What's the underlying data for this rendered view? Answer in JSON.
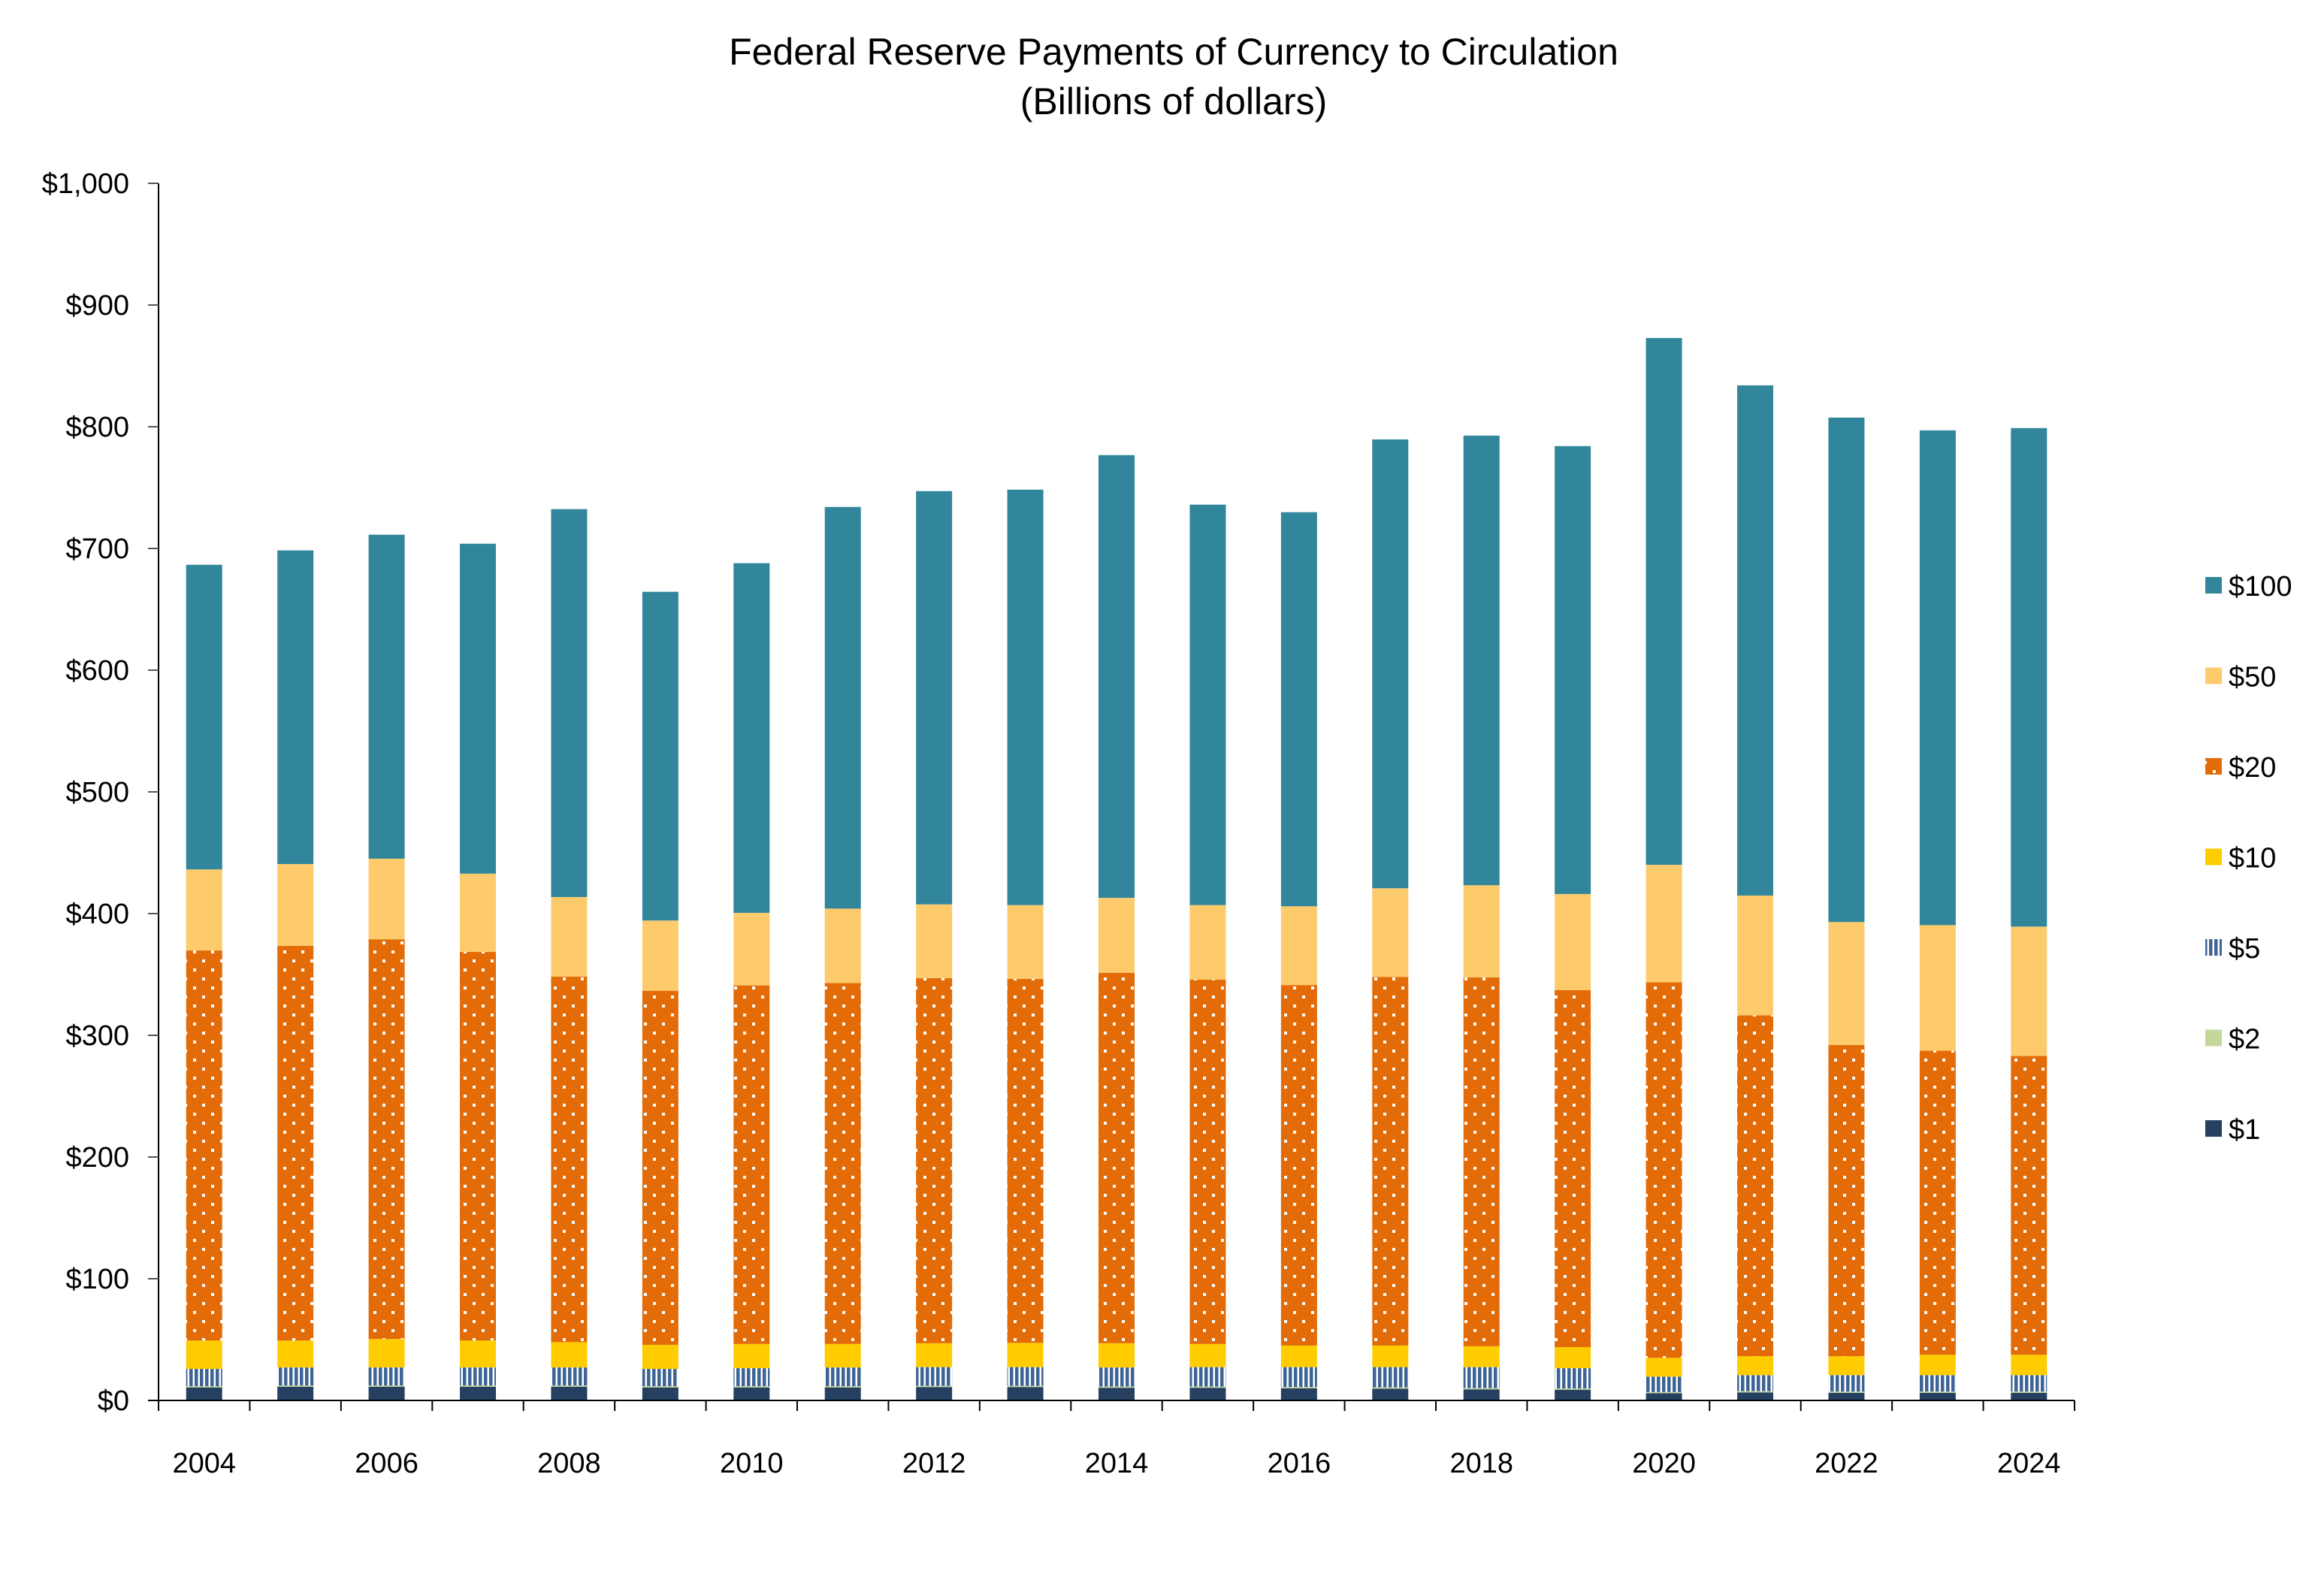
{
  "chart_data": {
    "type": "bar",
    "stacked": true,
    "title": "Federal Reserve Payments of Currency to Circulation",
    "subtitle": "(Billions of dollars)",
    "xlabel": "",
    "ylabel": "",
    "ylim": [
      0,
      1000
    ],
    "ytick_step": 100,
    "ytick_labels": [
      "$0",
      "$100",
      "$200",
      "$300",
      "$400",
      "$500",
      "$600",
      "$700",
      "$800",
      "$900",
      "$1,000"
    ],
    "grid": false,
    "legend_position": "right",
    "categories": [
      "2004",
      "2005",
      "2006",
      "2007",
      "2008",
      "2009",
      "2010",
      "2011",
      "2012",
      "2013",
      "2014",
      "2015",
      "2016",
      "2017",
      "2018",
      "2019",
      "2020",
      "2021",
      "2022",
      "2023",
      "2024"
    ],
    "xtick_labels": [
      "2004",
      "",
      "2006",
      "",
      "2008",
      "",
      "2010",
      "",
      "2012",
      "",
      "2014",
      "",
      "2016",
      "",
      "2018",
      "",
      "2020",
      "",
      "2022",
      "",
      "2024"
    ],
    "series": [
      {
        "name": "$1",
        "color": "#254061",
        "pattern": "solid",
        "values": [
          10.7,
          11.3,
          11.3,
          11.3,
          11.3,
          10.7,
          10.7,
          10.7,
          11.0,
          11.0,
          10.4,
          10.4,
          10.0,
          9.7,
          9.1,
          8.8,
          5.9,
          6.6,
          6.3,
          6.3,
          6.3
        ]
      },
      {
        "name": "$2",
        "color": "#c4d79b",
        "pattern": "solid",
        "values": [
          1.0,
          1.0,
          1.0,
          1.0,
          1.0,
          1.0,
          1.0,
          1.0,
          1.0,
          1.0,
          1.0,
          1.0,
          1.0,
          1.0,
          1.0,
          1.0,
          1.0,
          1.0,
          1.0,
          1.0,
          1.0
        ]
      },
      {
        "name": "$5",
        "color": "#3d6494",
        "pattern": "vertical-stripes",
        "values": [
          14.2,
          14.8,
          14.8,
          14.8,
          14.8,
          14.2,
          14.8,
          15.4,
          15.4,
          15.4,
          15.7,
          16.0,
          16.4,
          16.7,
          17.3,
          16.7,
          12.7,
          13.2,
          13.5,
          13.5,
          13.5
        ]
      },
      {
        "name": "$10",
        "color": "#ffcc00",
        "pattern": "solid",
        "values": [
          23.3,
          22.1,
          23.4,
          22.1,
          20.8,
          19.8,
          19.9,
          19.3,
          19.6,
          19.9,
          19.9,
          19.0,
          17.7,
          17.7,
          17.1,
          17.3,
          15.4,
          15.5,
          15.5,
          16.7,
          16.7
        ]
      },
      {
        "name": "$20",
        "color": "#e36c09",
        "pattern": "dots",
        "values": [
          320.5,
          324.3,
          328.4,
          319.3,
          300.4,
          290.9,
          294.6,
          296.5,
          300.0,
          299.1,
          304.4,
          299.3,
          296.2,
          302.9,
          303.1,
          293.4,
          308.5,
          280.1,
          255.8,
          249.9,
          245.5
        ]
      },
      {
        "name": "$50",
        "color": "#fdcb6b",
        "pattern": "solid",
        "values": [
          66.6,
          67.2,
          66.2,
          64.3,
          65.3,
          57.7,
          59.6,
          61.2,
          60.6,
          60.6,
          61.5,
          61.3,
          64.7,
          72.8,
          75.7,
          78.9,
          96.6,
          98.4,
          101.0,
          103.1,
          106.3
        ]
      },
      {
        "name": "$100",
        "color": "#31869b",
        "pattern": "solid",
        "values": [
          250.3,
          257.7,
          266.2,
          271.1,
          318.7,
          270.1,
          287.3,
          330.0,
          339.5,
          341.3,
          363.8,
          329.0,
          323.8,
          368.8,
          369.4,
          368.0,
          432.8,
          419.2,
          414.4,
          406.5,
          409.6
        ]
      }
    ],
    "legend_order": [
      "$100",
      "$50",
      "$20",
      "$10",
      "$5",
      "$2",
      "$1"
    ]
  }
}
